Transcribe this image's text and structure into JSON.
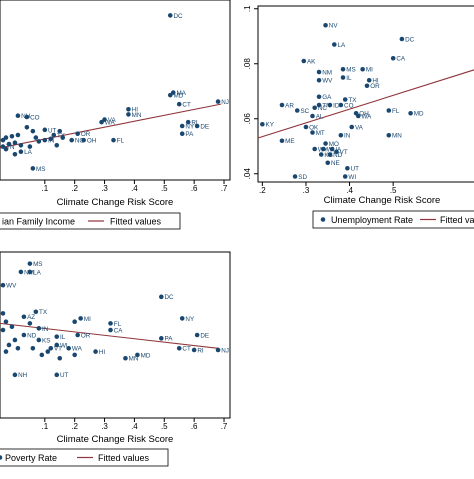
{
  "colors": {
    "marker": "#1a476f",
    "fit": "#90353b",
    "axis": "#000000",
    "frame": "#000000",
    "background": "#ffffff"
  },
  "chart_data": [
    {
      "type": "scatter",
      "xlabel": "Climate Change Risk Score",
      "ylabel": "",
      "xlim": [
        -0.05,
        0.72
      ],
      "ylim": [
        0.0,
        1.4
      ],
      "x_ticks": [
        ".1",
        ".2",
        ".3",
        ".4",
        ".5",
        ".6",
        ".7"
      ],
      "x_tick_values": [
        0.1,
        0.2,
        0.3,
        0.4,
        0.5,
        0.6,
        0.7
      ],
      "y_ticks": [],
      "y_tick_values": [],
      "legend": {
        "placement": "bottom",
        "marker_label": "ian Family Income",
        "fit_label": "Fitted values"
      },
      "fit": {
        "x": [
          -0.05,
          0.69
        ],
        "y": [
          0.25,
          0.59
        ]
      },
      "points": [
        {
          "label": "DC",
          "x": 0.52,
          "y": 1.28
        },
        {
          "label": "MA",
          "x": 0.53,
          "y": 0.68
        },
        {
          "label": "MD",
          "x": 0.52,
          "y": 0.66
        },
        {
          "label": "NJ",
          "x": 0.68,
          "y": 0.61
        },
        {
          "label": "CT",
          "x": 0.55,
          "y": 0.59
        },
        {
          "label": "HI",
          "x": 0.38,
          "y": 0.55
        },
        {
          "label": "NH",
          "x": 0.01,
          "y": 0.5
        },
        {
          "label": "CO",
          "x": 0.04,
          "y": 0.49
        },
        {
          "label": "MN",
          "x": 0.38,
          "y": 0.51
        },
        {
          "label": "VA",
          "x": 0.3,
          "y": 0.47
        },
        {
          "label": "WA",
          "x": 0.29,
          "y": 0.45
        },
        {
          "label": "RI",
          "x": 0.58,
          "y": 0.45
        },
        {
          "label": "NY",
          "x": 0.56,
          "y": 0.42
        },
        {
          "label": "DE",
          "x": 0.61,
          "y": 0.42
        },
        {
          "label": "UT",
          "x": 0.1,
          "y": 0.39
        },
        {
          "label": "PA",
          "x": 0.56,
          "y": 0.36
        },
        {
          "label": "TX",
          "x": 0.13,
          "y": 0.35
        },
        {
          "label": "OR",
          "x": 0.21,
          "y": 0.36
        },
        {
          "label": "IN",
          "x": 0.1,
          "y": 0.31
        },
        {
          "label": "NC",
          "x": 0.19,
          "y": 0.31
        },
        {
          "label": "OH",
          "x": 0.23,
          "y": 0.31
        },
        {
          "label": "FL",
          "x": 0.33,
          "y": 0.31
        },
        {
          "label": "TN",
          "x": -0.04,
          "y": 0.26
        },
        {
          "label": "LA",
          "x": 0.02,
          "y": 0.22
        },
        {
          "label": "MS",
          "x": 0.06,
          "y": 0.09
        },
        {
          "label": "",
          "x": 0.04,
          "y": 0.41
        },
        {
          "label": "",
          "x": 0.06,
          "y": 0.38
        },
        {
          "label": "",
          "x": 0.01,
          "y": 0.35
        },
        {
          "label": "",
          "x": -0.01,
          "y": 0.34
        },
        {
          "label": "",
          "x": -0.03,
          "y": 0.33
        },
        {
          "label": "",
          "x": -0.04,
          "y": 0.31
        },
        {
          "label": "",
          "x": 0.0,
          "y": 0.29
        },
        {
          "label": "",
          "x": -0.02,
          "y": 0.28
        },
        {
          "label": "",
          "x": 0.02,
          "y": 0.27
        },
        {
          "label": "",
          "x": 0.05,
          "y": 0.26
        },
        {
          "label": "",
          "x": 0.08,
          "y": 0.3
        },
        {
          "label": "",
          "x": 0.12,
          "y": 0.32
        },
        {
          "label": "",
          "x": 0.15,
          "y": 0.38
        },
        {
          "label": "",
          "x": -0.03,
          "y": 0.24
        },
        {
          "label": "",
          "x": 0.0,
          "y": 0.2
        },
        {
          "label": "",
          "x": 0.14,
          "y": 0.27
        },
        {
          "label": "",
          "x": 0.16,
          "y": 0.33
        },
        {
          "label": "",
          "x": 0.07,
          "y": 0.33
        }
      ]
    },
    {
      "type": "scatter",
      "xlabel": "Climate Change Risk Score",
      "ylabel": "",
      "xlim": [
        0.19,
        0.69
      ],
      "ylim": [
        0.037,
        0.101
      ],
      "x_ticks": [
        ".2",
        ".3",
        ".4",
        ".5"
      ],
      "x_tick_values": [
        0.2,
        0.3,
        0.4,
        0.5
      ],
      "y_ticks": [
        ".04",
        ".06",
        ".08",
        ".1"
      ],
      "y_tick_values": [
        0.04,
        0.06,
        0.08,
        0.1
      ],
      "legend": {
        "placement": "bottom",
        "marker_label": "Unemployment Rate",
        "fit_label": "Fitted values"
      },
      "fit": {
        "x": [
          0.19,
          0.69
        ],
        "y": [
          0.053,
          0.078
        ]
      },
      "points": [
        {
          "label": "NV",
          "x": 0.345,
          "y": 0.094
        },
        {
          "label": "DC",
          "x": 0.52,
          "y": 0.089
        },
        {
          "label": "LA",
          "x": 0.365,
          "y": 0.087
        },
        {
          "label": "CA",
          "x": 0.5,
          "y": 0.082
        },
        {
          "label": "AK",
          "x": 0.295,
          "y": 0.081
        },
        {
          "label": "MS",
          "x": 0.385,
          "y": 0.078
        },
        {
          "label": "MI",
          "x": 0.43,
          "y": 0.078
        },
        {
          "label": "NM",
          "x": 0.33,
          "y": 0.077
        },
        {
          "label": "IL",
          "x": 0.385,
          "y": 0.075
        },
        {
          "label": "WV",
          "x": 0.33,
          "y": 0.074
        },
        {
          "label": "HI",
          "x": 0.445,
          "y": 0.074
        },
        {
          "label": "OR",
          "x": 0.44,
          "y": 0.072
        },
        {
          "label": "GA",
          "x": 0.33,
          "y": 0.068
        },
        {
          "label": "TX",
          "x": 0.39,
          "y": 0.067
        },
        {
          "label": "AR",
          "x": 0.245,
          "y": 0.065
        },
        {
          "label": "TN",
          "x": 0.33,
          "y": 0.065
        },
        {
          "label": "SC",
          "x": 0.28,
          "y": 0.063
        },
        {
          "label": "AL",
          "x": 0.315,
          "y": 0.061
        },
        {
          "label": "NC",
          "x": 0.32,
          "y": 0.064
        },
        {
          "label": "FL",
          "x": 0.49,
          "y": 0.063
        },
        {
          "label": "ID",
          "x": 0.355,
          "y": 0.065
        },
        {
          "label": "CO",
          "x": 0.38,
          "y": 0.065
        },
        {
          "label": "OH",
          "x": 0.415,
          "y": 0.062
        },
        {
          "label": "WA",
          "x": 0.42,
          "y": 0.061
        },
        {
          "label": "MD",
          "x": 0.54,
          "y": 0.062
        },
        {
          "label": "KY",
          "x": 0.2,
          "y": 0.058
        },
        {
          "label": "OK",
          "x": 0.3,
          "y": 0.057
        },
        {
          "label": "MT",
          "x": 0.315,
          "y": 0.055
        },
        {
          "label": "VA",
          "x": 0.405,
          "y": 0.057
        },
        {
          "label": "IN",
          "x": 0.38,
          "y": 0.054
        },
        {
          "label": "MN",
          "x": 0.49,
          "y": 0.054
        },
        {
          "label": "ME",
          "x": 0.245,
          "y": 0.052
        },
        {
          "label": "MO",
          "x": 0.345,
          "y": 0.051
        },
        {
          "label": "WI",
          "x": 0.34,
          "y": 0.049
        },
        {
          "label": "WY",
          "x": 0.32,
          "y": 0.049
        },
        {
          "label": "IA",
          "x": 0.36,
          "y": 0.049
        },
        {
          "label": "KS",
          "x": 0.335,
          "y": 0.047
        },
        {
          "label": "ND",
          "x": 0.355,
          "y": 0.047
        },
        {
          "label": "VT",
          "x": 0.37,
          "y": 0.048
        },
        {
          "label": "NE",
          "x": 0.35,
          "y": 0.044
        },
        {
          "label": "UT",
          "x": 0.395,
          "y": 0.042
        },
        {
          "label": "SD",
          "x": 0.275,
          "y": 0.039
        },
        {
          "label": "WI",
          "x": 0.39,
          "y": 0.039
        }
      ]
    },
    {
      "type": "scatter",
      "xlabel": "Climate Change Risk Score",
      "ylabel": "",
      "xlim": [
        -0.05,
        0.72
      ],
      "ylim": [
        0.0,
        1.0
      ],
      "x_ticks": [
        ".1",
        ".2",
        ".3",
        ".4",
        ".5",
        ".6",
        ".7"
      ],
      "x_tick_values": [
        0.1,
        0.2,
        0.3,
        0.4,
        0.5,
        0.6,
        0.7
      ],
      "y_ticks": [],
      "y_tick_values": [],
      "legend": {
        "placement": "bottom",
        "marker_label": "Poverty Rate",
        "fit_label": "Fitted values"
      },
      "fit": {
        "x": [
          -0.05,
          0.68
        ],
        "y": [
          0.57,
          0.42
        ]
      },
      "points": [
        {
          "label": "MS",
          "x": 0.05,
          "y": 0.93
        },
        {
          "label": "NM",
          "x": 0.02,
          "y": 0.88
        },
        {
          "label": "LA",
          "x": 0.05,
          "y": 0.88
        },
        {
          "label": "WV",
          "x": -0.04,
          "y": 0.8
        },
        {
          "label": "DC",
          "x": 0.49,
          "y": 0.73
        },
        {
          "label": "TX",
          "x": 0.07,
          "y": 0.64
        },
        {
          "label": "NY",
          "x": 0.56,
          "y": 0.6
        },
        {
          "label": "AZ",
          "x": 0.03,
          "y": 0.61
        },
        {
          "label": "MI",
          "x": 0.22,
          "y": 0.6
        },
        {
          "label": "FL",
          "x": 0.32,
          "y": 0.57
        },
        {
          "label": "CA",
          "x": 0.32,
          "y": 0.53
        },
        {
          "label": "IN",
          "x": 0.08,
          "y": 0.54
        },
        {
          "label": "DE",
          "x": 0.61,
          "y": 0.5
        },
        {
          "label": "ND",
          "x": 0.03,
          "y": 0.5
        },
        {
          "label": "IL",
          "x": 0.14,
          "y": 0.49
        },
        {
          "label": "OR",
          "x": 0.21,
          "y": 0.5
        },
        {
          "label": "PA",
          "x": 0.49,
          "y": 0.48
        },
        {
          "label": "KS",
          "x": 0.08,
          "y": 0.47
        },
        {
          "label": "WI",
          "x": 0.14,
          "y": 0.44
        },
        {
          "label": "NJ",
          "x": 0.68,
          "y": 0.41
        },
        {
          "label": "CT",
          "x": 0.55,
          "y": 0.42
        },
        {
          "label": "VT",
          "x": 0.12,
          "y": 0.42
        },
        {
          "label": "WA",
          "x": 0.18,
          "y": 0.42
        },
        {
          "label": "RI",
          "x": 0.6,
          "y": 0.41
        },
        {
          "label": "HI",
          "x": 0.27,
          "y": 0.4
        },
        {
          "label": "MD",
          "x": 0.41,
          "y": 0.38
        },
        {
          "label": "MN",
          "x": 0.37,
          "y": 0.36
        },
        {
          "label": "NH",
          "x": 0.0,
          "y": 0.26
        },
        {
          "label": "UT",
          "x": 0.14,
          "y": 0.26
        },
        {
          "label": "",
          "x": -0.04,
          "y": 0.63
        },
        {
          "label": "",
          "x": -0.03,
          "y": 0.58
        },
        {
          "label": "",
          "x": -0.01,
          "y": 0.55
        },
        {
          "label": "",
          "x": -0.04,
          "y": 0.53
        },
        {
          "label": "",
          "x": 0.0,
          "y": 0.47
        },
        {
          "label": "",
          "x": -0.02,
          "y": 0.44
        },
        {
          "label": "",
          "x": 0.01,
          "y": 0.42
        },
        {
          "label": "",
          "x": -0.03,
          "y": 0.4
        },
        {
          "label": "",
          "x": 0.09,
          "y": 0.38
        },
        {
          "label": "",
          "x": 0.06,
          "y": 0.42
        },
        {
          "label": "",
          "x": 0.05,
          "y": 0.57
        },
        {
          "label": "",
          "x": 0.2,
          "y": 0.58
        },
        {
          "label": "",
          "x": 0.11,
          "y": 0.4
        },
        {
          "label": "",
          "x": 0.2,
          "y": 0.38
        },
        {
          "label": "",
          "x": 0.15,
          "y": 0.36
        }
      ]
    }
  ]
}
